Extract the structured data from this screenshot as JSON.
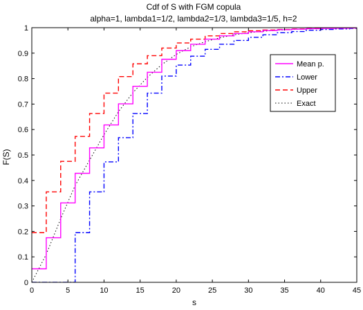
{
  "chart_data": {
    "type": "line",
    "title": "Cdf of S with FGM copula",
    "subtitle": "alpha=1, lambda1=1/2, lambda2=1/3, lambda3=1/5, h=2",
    "xlabel": "s",
    "ylabel": "F(S)",
    "xlim": [
      0,
      45
    ],
    "ylim": [
      0,
      1
    ],
    "xticks": [
      "0",
      "5",
      "10",
      "15",
      "20",
      "25",
      "30",
      "35",
      "40",
      "45"
    ],
    "yticks": [
      "0",
      "0.1",
      "0.2",
      "0.3",
      "0.4",
      "0.5",
      "0.6",
      "0.7",
      "0.8",
      "0.9",
      "1"
    ],
    "grid": false,
    "legend_position": "top-right",
    "series": [
      {
        "name": "Mean p.",
        "color": "#ff00ff",
        "style": "solid",
        "steps": [
          [
            0,
            0.053
          ],
          [
            2,
            0.175
          ],
          [
            4,
            0.312
          ],
          [
            6,
            0.428
          ],
          [
            8,
            0.528
          ],
          [
            10,
            0.618
          ],
          [
            12,
            0.701
          ],
          [
            14,
            0.77
          ],
          [
            16,
            0.825
          ],
          [
            18,
            0.876
          ],
          [
            20,
            0.91
          ],
          [
            22,
            0.935
          ],
          [
            24,
            0.955
          ],
          [
            26,
            0.968
          ],
          [
            28,
            0.977
          ],
          [
            30,
            0.984
          ],
          [
            32,
            0.989
          ],
          [
            34,
            0.992
          ],
          [
            36,
            0.994
          ],
          [
            38,
            0.996
          ],
          [
            40,
            0.997
          ],
          [
            42,
            0.998
          ],
          [
            44,
            0.999
          ],
          [
            45,
            0.999
          ]
        ]
      },
      {
        "name": "Lower",
        "color": "#0000ff",
        "style": "dashdot",
        "steps": [
          [
            0,
            0
          ],
          [
            6,
            0.195
          ],
          [
            8,
            0.355
          ],
          [
            10,
            0.473
          ],
          [
            12,
            0.568
          ],
          [
            14,
            0.663
          ],
          [
            16,
            0.743
          ],
          [
            18,
            0.81
          ],
          [
            20,
            0.853
          ],
          [
            22,
            0.888
          ],
          [
            24,
            0.915
          ],
          [
            26,
            0.935
          ],
          [
            28,
            0.95
          ],
          [
            30,
            0.962
          ],
          [
            32,
            0.972
          ],
          [
            34,
            0.98
          ],
          [
            36,
            0.985
          ],
          [
            38,
            0.99
          ],
          [
            40,
            0.993
          ],
          [
            42,
            0.995
          ],
          [
            44,
            0.997
          ],
          [
            45,
            0.997
          ]
        ]
      },
      {
        "name": "Upper",
        "color": "#ff0000",
        "style": "dashed",
        "steps": [
          [
            0,
            0.195
          ],
          [
            2,
            0.355
          ],
          [
            4,
            0.475
          ],
          [
            6,
            0.573
          ],
          [
            8,
            0.663
          ],
          [
            10,
            0.743
          ],
          [
            12,
            0.808
          ],
          [
            14,
            0.858
          ],
          [
            16,
            0.89
          ],
          [
            18,
            0.92
          ],
          [
            20,
            0.94
          ],
          [
            22,
            0.955
          ],
          [
            24,
            0.968
          ],
          [
            26,
            0.977
          ],
          [
            28,
            0.984
          ],
          [
            30,
            0.988
          ],
          [
            32,
            0.991
          ],
          [
            34,
            0.993
          ],
          [
            36,
            0.995
          ],
          [
            38,
            0.997
          ],
          [
            40,
            0.998
          ],
          [
            42,
            0.999
          ],
          [
            44,
            0.999
          ],
          [
            45,
            0.999
          ]
        ]
      },
      {
        "name": "Exact",
        "color": "#000000",
        "style": "dotted",
        "points": [
          [
            0,
            0
          ],
          [
            2,
            0.11
          ],
          [
            4,
            0.25
          ],
          [
            6,
            0.38
          ],
          [
            8,
            0.48
          ],
          [
            10,
            0.58
          ],
          [
            12,
            0.67
          ],
          [
            14,
            0.745
          ],
          [
            16,
            0.805
          ],
          [
            18,
            0.855
          ],
          [
            20,
            0.895
          ],
          [
            22,
            0.925
          ],
          [
            24,
            0.945
          ],
          [
            26,
            0.96
          ],
          [
            28,
            0.972
          ],
          [
            30,
            0.98
          ],
          [
            32,
            0.986
          ],
          [
            34,
            0.99
          ],
          [
            36,
            0.993
          ],
          [
            38,
            0.995
          ],
          [
            40,
            0.997
          ],
          [
            42,
            0.998
          ],
          [
            44,
            0.999
          ],
          [
            45,
            0.999
          ]
        ]
      }
    ]
  }
}
